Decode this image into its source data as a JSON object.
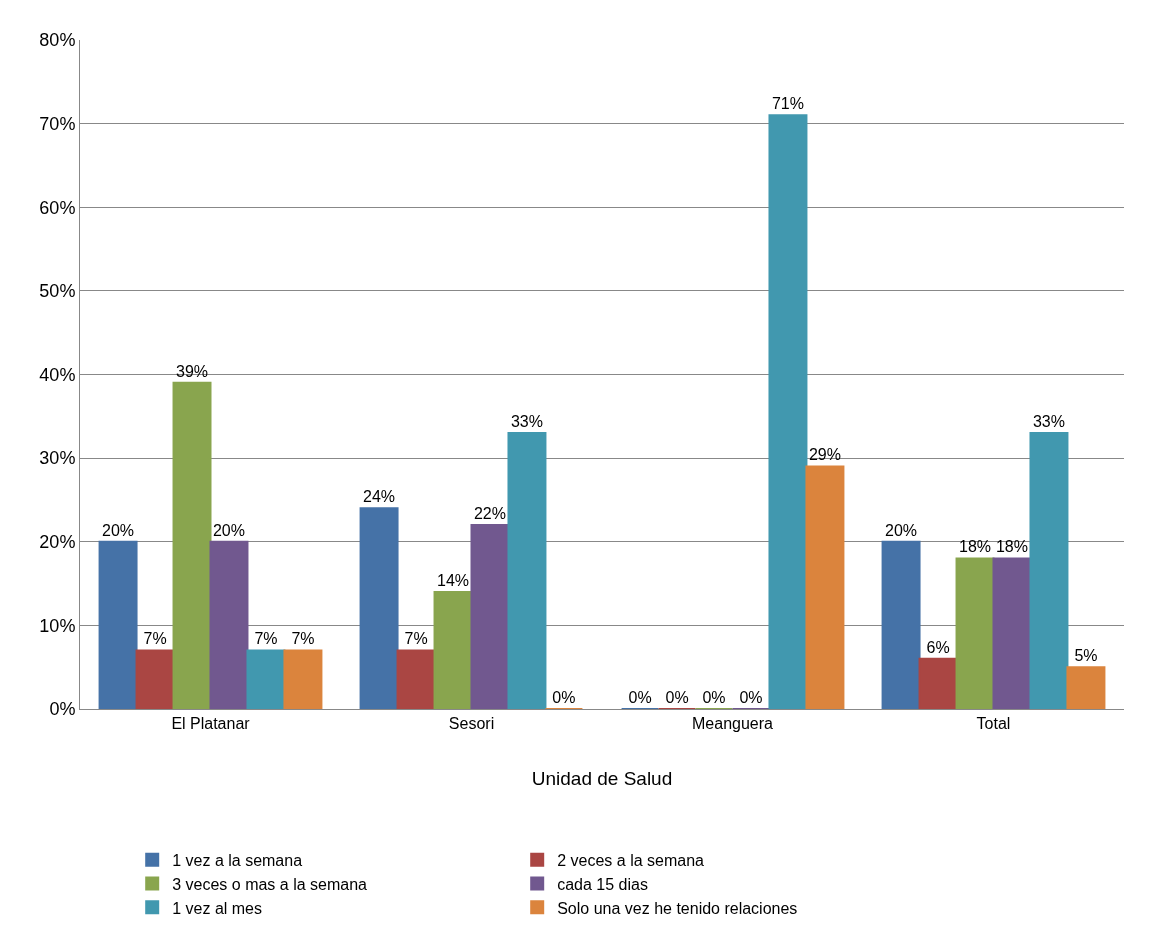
{
  "chart_data": {
    "type": "bar",
    "xlabel": "Unidad de Salud",
    "categories": [
      "El Platanar",
      "Sesori",
      "Meanguera",
      "Total"
    ],
    "series": [
      {
        "name": "1 vez a la semana",
        "color": "#4572a7",
        "values": [
          20,
          24,
          0,
          20
        ],
        "value_labels": [
          "20%",
          "24%",
          "0%",
          "20%"
        ]
      },
      {
        "name": "2 veces a la semana",
        "color": "#aa4643",
        "values": [
          7,
          7,
          0,
          6
        ],
        "value_labels": [
          "7%",
          "7%",
          "0%",
          "6%"
        ]
      },
      {
        "name": "3 veces o mas a la semana",
        "color": "#89a54e",
        "values": [
          39,
          14,
          0,
          18
        ],
        "value_labels": [
          "39%",
          "14%",
          "0%",
          "18%"
        ]
      },
      {
        "name": "cada 15 dias",
        "color": "#71588f",
        "values": [
          20,
          22,
          0,
          18
        ],
        "value_labels": [
          "20%",
          "22%",
          "0%",
          "18%"
        ]
      },
      {
        "name": "1 vez al mes",
        "color": "#4198af",
        "values": [
          7,
          33,
          71,
          33
        ],
        "value_labels": [
          "7%",
          "33%",
          "71%",
          "33%"
        ]
      },
      {
        "name": "Solo una vez he tenido relaciones",
        "color": "#db843d",
        "values": [
          7,
          0,
          29,
          5
        ],
        "value_labels": [
          "7%",
          "0%",
          "29%",
          "5%"
        ]
      }
    ],
    "ylim": [
      0,
      80
    ],
    "yticks": [
      {
        "value": 0,
        "label": "0%"
      },
      {
        "value": 10,
        "label": "10%"
      },
      {
        "value": 20,
        "label": "20%"
      },
      {
        "value": 30,
        "label": "30%"
      },
      {
        "value": 40,
        "label": "40%"
      },
      {
        "value": 50,
        "label": "50%"
      },
      {
        "value": 60,
        "label": "60%"
      },
      {
        "value": 70,
        "label": "70%"
      },
      {
        "value": 80,
        "label": "80%"
      }
    ],
    "grid": "y",
    "legend": "bottom"
  }
}
